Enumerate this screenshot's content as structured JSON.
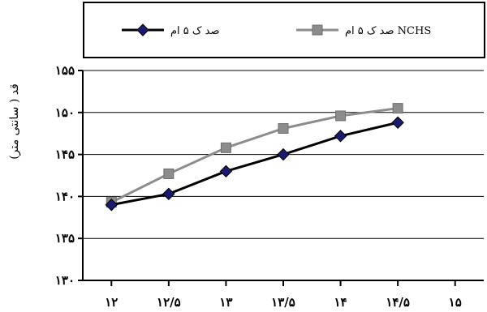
{
  "chart_data": {
    "type": "line",
    "xlabel": "",
    "ylabel": "قد ( سانتی متر)",
    "ylim": [
      130,
      155
    ],
    "xlim": [
      11.75,
      15.25
    ],
    "y_ticks": [
      130,
      135,
      140,
      145,
      150,
      155
    ],
    "y_tick_labels": [
      "۱۳۰",
      "۱۳۵",
      "۱۴۰",
      "۱۴۵",
      "۱۵۰",
      "۱۵۵"
    ],
    "x_ticks": [
      12,
      12.5,
      13,
      13.5,
      14,
      14.5,
      15
    ],
    "x_tick_labels": [
      "۱۲",
      "۱۲/۵",
      "۱۳",
      "۱۳/۵",
      "۱۴",
      "۱۴/۵",
      "۱۵"
    ],
    "grid": true,
    "legend_position": "top",
    "series": [
      {
        "name": "صد ک ۵ ام",
        "color": "#000000",
        "marker": "diamond",
        "marker_color": "#1a1a6e",
        "x": [
          12,
          12.5,
          13,
          13.5,
          14,
          14.5
        ],
        "values": [
          139,
          140.3,
          143,
          145,
          147.2,
          148.8
        ]
      },
      {
        "name": "صد ک ۵ ام NCHS",
        "color": "#8c8c8c",
        "marker": "square",
        "marker_color": "#8c8c8c",
        "x": [
          12,
          12.5,
          13,
          13.5,
          14,
          14.5
        ],
        "values": [
          139.3,
          142.7,
          145.8,
          148.1,
          149.6,
          150.5
        ]
      }
    ]
  }
}
